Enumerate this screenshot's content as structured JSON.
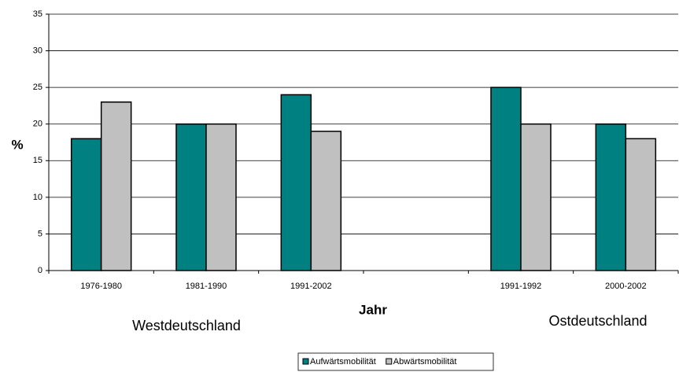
{
  "chart_data": {
    "type": "bar",
    "y_label": "%",
    "x_label": "Jahr",
    "annotations": [
      "Westdeutschland",
      "Ostdeutschland"
    ],
    "categories": [
      "1976-1980",
      "1981-1990",
      "1991-2002",
      null,
      "1991-1992",
      "2000-2002"
    ],
    "series": [
      {
        "name": "Aufwärtsmobilität",
        "color": "#008080",
        "values": [
          18,
          20,
          24,
          null,
          25,
          20
        ]
      },
      {
        "name": "Abwärtsmobilität",
        "color": "#c0c0c0",
        "values": [
          23,
          20,
          19,
          null,
          20,
          18
        ]
      }
    ],
    "ylim": [
      0,
      35
    ],
    "yticks": [
      0,
      5,
      10,
      15,
      20,
      25,
      30,
      35
    ],
    "grid": true,
    "legend": "bottom"
  }
}
